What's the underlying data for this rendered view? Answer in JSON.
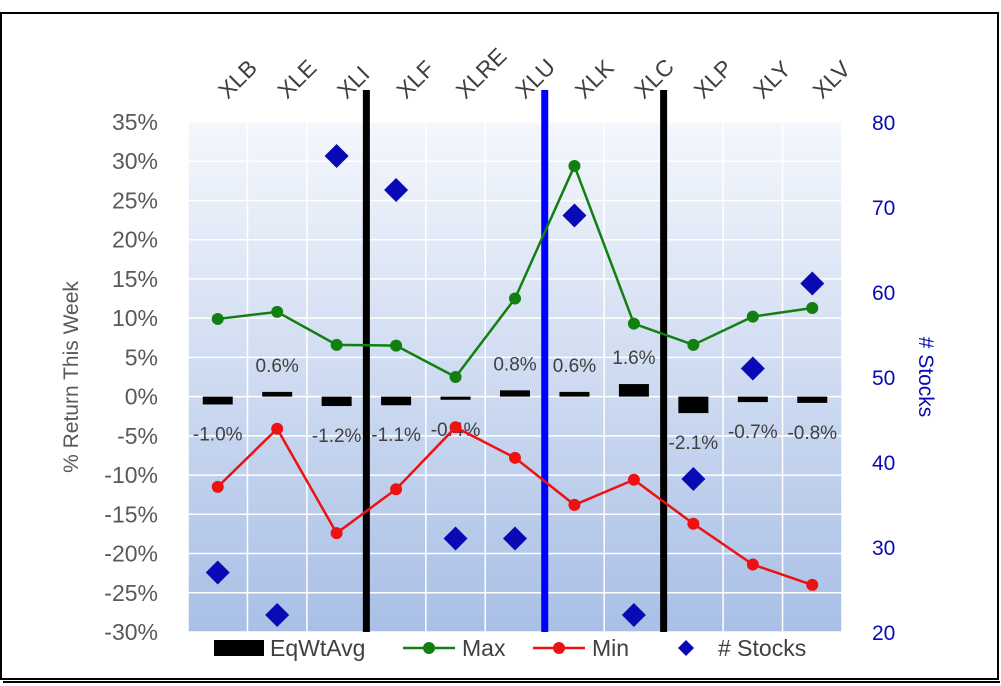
{
  "chart_data": {
    "type": "line",
    "title": "",
    "categories": [
      "XLB",
      "XLE",
      "XLI",
      "XLF",
      "XLRE",
      "XLU",
      "XLK",
      "XLC",
      "XLP",
      "XLY",
      "XLV"
    ],
    "y_left": {
      "label": "% Return This Week",
      "min": -30,
      "max": 35,
      "step": 5,
      "unit": "%"
    },
    "y_right": {
      "label": "# Stocks",
      "min": 20,
      "max": 80,
      "step": 10
    },
    "series": [
      {
        "name": "EqWtAvg",
        "kind": "bar-marker",
        "axis": "left",
        "color": "#000000",
        "values": [
          -1.0,
          0.6,
          -1.2,
          -1.1,
          -0.4,
          0.8,
          0.6,
          1.6,
          -2.1,
          -0.7,
          -0.8
        ],
        "labels": [
          "-1.0%",
          "0.6%",
          "-1.2%",
          "-1.1%",
          "-0.4%",
          "0.8%",
          "0.6%",
          "1.6%",
          "-2.1%",
          "-0.7%",
          "-0.8%"
        ]
      },
      {
        "name": "Max",
        "kind": "line",
        "axis": "left",
        "color": "#118011",
        "values": [
          9.9,
          10.8,
          6.6,
          6.5,
          2.5,
          12.5,
          29.4,
          9.3,
          6.6,
          10.2,
          11.3
        ]
      },
      {
        "name": "Min",
        "kind": "line",
        "axis": "left",
        "color": "#ee1111",
        "values": [
          -11.5,
          -4.1,
          -17.4,
          -11.8,
          -3.9,
          -7.8,
          -13.8,
          -10.6,
          -16.2,
          -21.4,
          -24.0
        ]
      },
      {
        "name": "# Stocks",
        "kind": "scatter",
        "axis": "right",
        "color": "#0a0ab4",
        "values": [
          27,
          22,
          76,
          72,
          31,
          31,
          69,
          22,
          38,
          51,
          61
        ]
      }
    ],
    "separators": [
      {
        "after": "XLI",
        "color": "#000000"
      },
      {
        "after": "XLU",
        "color": "#0000ff"
      },
      {
        "after": "XLC",
        "color": "#000000"
      }
    ],
    "legend": {
      "position": "bottom",
      "entries": [
        "EqWtAvg",
        "Max",
        "Min",
        "# Stocks"
      ]
    },
    "grid": true
  }
}
